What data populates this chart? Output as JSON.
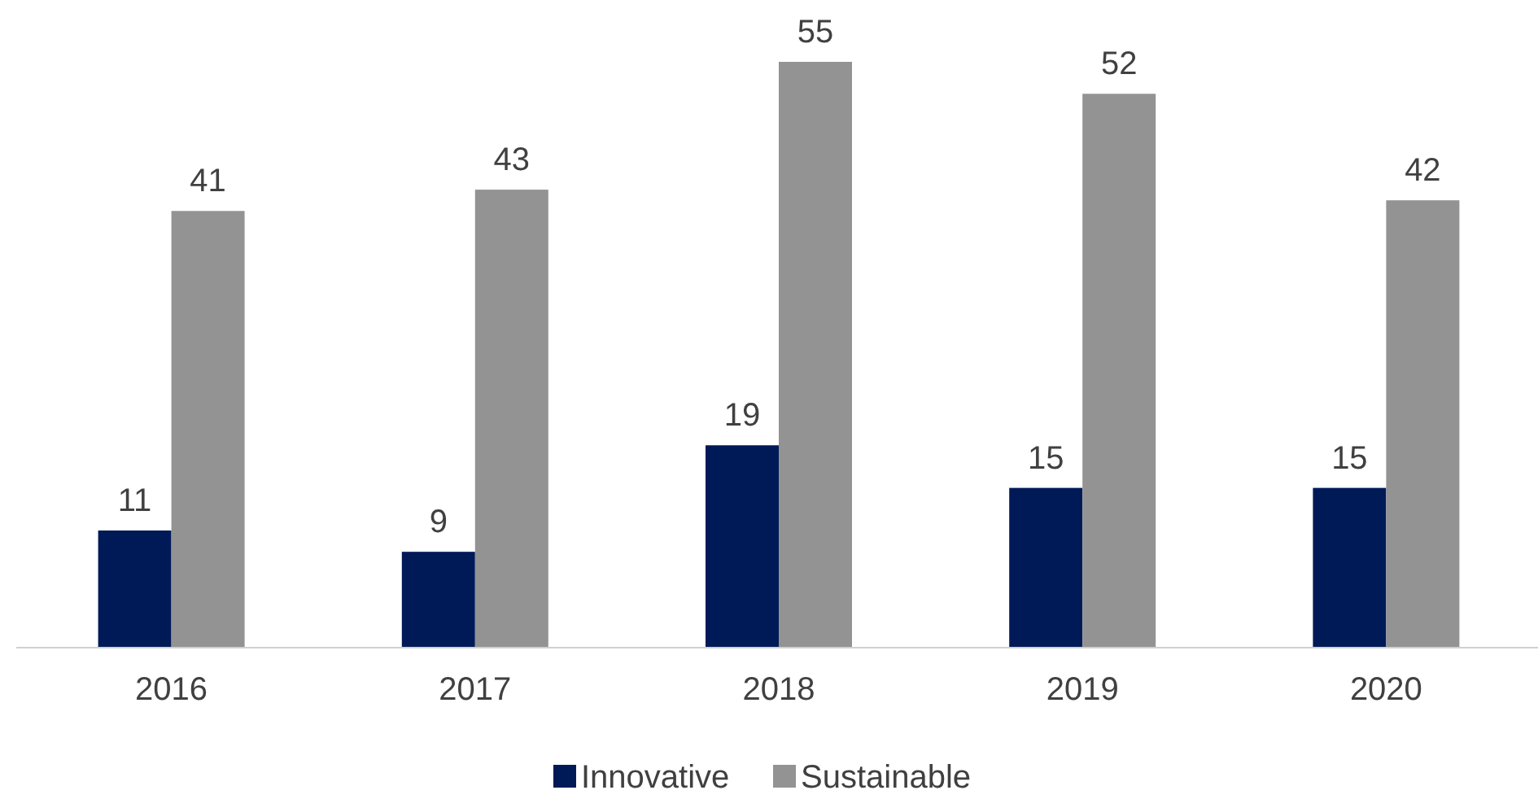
{
  "chart_data": {
    "type": "bar",
    "categories": [
      "2016",
      "2017",
      "2018",
      "2019",
      "2020"
    ],
    "series": [
      {
        "name": "Innovative",
        "color": "#001a57",
        "values": [
          11,
          9,
          19,
          15,
          15
        ]
      },
      {
        "name": "Sustainable",
        "color": "#939393",
        "values": [
          41,
          43,
          55,
          52,
          42
        ]
      }
    ],
    "data_labels": true,
    "legend": "bottom"
  }
}
